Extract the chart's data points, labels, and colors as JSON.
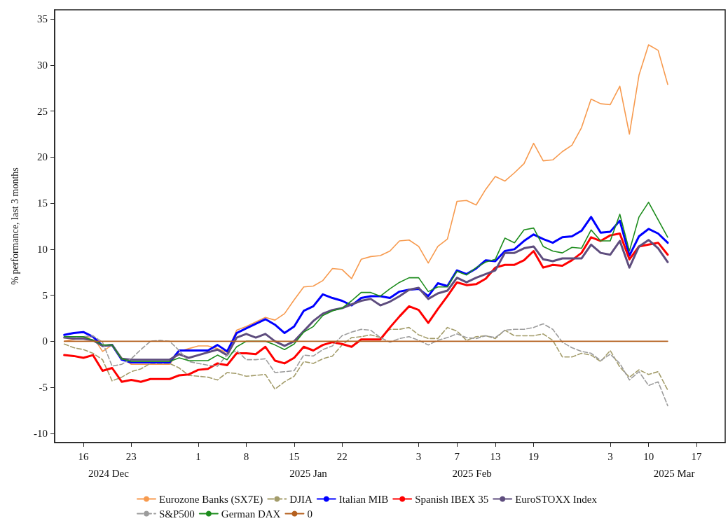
{
  "chart_data": {
    "type": "line",
    "ylabel": "% performance, last 3 months",
    "annotations": [
      "2024 Dec",
      "2025 Jan",
      "2025 Feb",
      "2025 Mar"
    ],
    "categories": [
      null,
      null,
      null,
      "16",
      null,
      null,
      null,
      null,
      "23",
      null,
      null,
      null,
      null,
      null,
      null,
      "1",
      null,
      null,
      null,
      null,
      "8",
      null,
      null,
      null,
      null,
      "15",
      null,
      null,
      null,
      null,
      "22",
      null,
      null,
      null,
      null,
      null,
      null,
      null,
      "3",
      null,
      null,
      null,
      "7",
      null,
      null,
      null,
      "13",
      null,
      null,
      null,
      "19",
      null,
      null,
      null,
      null,
      null,
      null,
      null,
      "3",
      null,
      null,
      null,
      "10",
      null,
      null,
      null,
      null,
      "17",
      null,
      null,
      null
    ],
    "series": [
      {
        "name": "Eurozone Banks (SX7E)",
        "color": "#f79a4e",
        "values": [
          null,
          0.0,
          0.2,
          0.4,
          0.5,
          -1.1,
          -0.4,
          -1.8,
          -2.5,
          -2.5,
          -2.5,
          -2.5,
          -2.5,
          -1.1,
          -0.8,
          -0.5,
          -0.5,
          -0.8,
          -1.2,
          1.2,
          1.6,
          2.1,
          2.6,
          2.3,
          3.0,
          4.5,
          5.9,
          6.0,
          6.6,
          7.9,
          7.8,
          6.8,
          8.9,
          9.2,
          9.3,
          9.8,
          10.9,
          11.0,
          10.3,
          8.5,
          10.3,
          11.1,
          15.2,
          15.3,
          14.8,
          16.5,
          17.9,
          17.4,
          18.3,
          19.3,
          21.5,
          19.6,
          19.7,
          20.6,
          21.3,
          23.2,
          26.3,
          25.8,
          25.7,
          27.7,
          22.5,
          28.9,
          32.2,
          31.6,
          27.9,
          null,
          null,
          null,
          null,
          null,
          null
        ]
      },
      {
        "name": "DJIA",
        "color": "#a39c6a",
        "line_style": "dashed",
        "values": [
          null,
          -0.3,
          -0.7,
          -0.9,
          -1.3,
          -2.0,
          -4.3,
          -3.9,
          -3.3,
          -3.0,
          -2.4,
          -2.4,
          -2.4,
          -2.9,
          -3.7,
          -3.8,
          -3.9,
          -4.2,
          -3.4,
          -3.5,
          -3.8,
          -3.7,
          -3.6,
          -5.2,
          -4.4,
          -3.8,
          -2.2,
          -2.4,
          -1.9,
          -1.6,
          -0.4,
          0.4,
          0.5,
          0.7,
          0.4,
          1.3,
          1.3,
          1.5,
          0.7,
          0.3,
          0.3,
          1.5,
          1.1,
          0.1,
          0.5,
          0.6,
          0.3,
          1.2,
          0.6,
          0.6,
          0.6,
          0.8,
          0.1,
          -1.7,
          -1.7,
          -1.3,
          -1.5,
          -2.2,
          -1.0,
          -2.8,
          -3.9,
          -3.1,
          -3.6,
          -3.3,
          -5.3,
          null,
          null,
          null,
          null,
          null,
          null
        ]
      },
      {
        "name": "Italian MIB",
        "color": "#0000ff",
        "values": [
          null,
          0.7,
          0.9,
          1.0,
          0.5,
          -0.5,
          -0.4,
          -2.0,
          -2.3,
          -2.3,
          -2.3,
          -2.3,
          -2.3,
          -1.0,
          -1.0,
          -1.0,
          -1.0,
          -0.4,
          -1.1,
          0.9,
          1.4,
          1.9,
          2.4,
          1.8,
          0.9,
          1.6,
          3.3,
          3.8,
          5.1,
          4.7,
          4.4,
          3.9,
          4.7,
          4.9,
          4.9,
          4.7,
          5.4,
          5.6,
          5.7,
          4.9,
          6.3,
          6.0,
          7.7,
          7.3,
          7.9,
          8.8,
          8.7,
          9.8,
          10.0,
          10.9,
          11.6,
          11.1,
          10.7,
          11.3,
          11.4,
          12.0,
          13.5,
          11.8,
          11.9,
          13.1,
          9.3,
          11.4,
          12.2,
          11.7,
          10.7,
          null,
          null,
          null,
          null,
          null,
          null
        ]
      },
      {
        "name": "Spanish IBEX 35",
        "color": "#ff0000",
        "values": [
          null,
          -1.5,
          -1.6,
          -1.8,
          -1.5,
          -3.2,
          -2.9,
          -4.4,
          -4.2,
          -4.4,
          -4.1,
          -4.1,
          -4.1,
          -3.7,
          -3.6,
          -3.1,
          -3.0,
          -2.4,
          -2.6,
          -1.3,
          -1.3,
          -1.4,
          -0.6,
          -2.1,
          -2.4,
          -1.8,
          -0.6,
          -1.0,
          -0.4,
          -0.1,
          -0.3,
          -0.6,
          0.2,
          0.2,
          0.2,
          1.5,
          2.7,
          3.8,
          3.4,
          2.0,
          3.5,
          4.9,
          6.4,
          6.1,
          6.2,
          6.8,
          8.0,
          8.3,
          8.3,
          8.8,
          9.8,
          8.0,
          8.3,
          8.2,
          8.8,
          9.6,
          11.3,
          10.9,
          11.5,
          11.7,
          8.9,
          10.3,
          10.5,
          10.7,
          9.4,
          null,
          null,
          null,
          null,
          null,
          null
        ]
      },
      {
        "name": "EuroSTOXX Index",
        "color": "#5e4d7e",
        "values": [
          null,
          0.4,
          0.3,
          0.3,
          0.1,
          -0.5,
          -0.4,
          -1.9,
          -2.0,
          -2.0,
          -2.0,
          -2.0,
          -2.0,
          -1.4,
          -1.8,
          -1.5,
          -1.2,
          -0.9,
          -1.5,
          0.4,
          0.8,
          0.4,
          0.8,
          0.0,
          -0.5,
          0.0,
          1.1,
          2.2,
          3.0,
          3.4,
          3.6,
          4.0,
          4.4,
          4.6,
          3.9,
          4.3,
          4.9,
          5.6,
          5.8,
          4.6,
          5.2,
          5.5,
          6.9,
          6.4,
          6.9,
          7.3,
          7.7,
          9.6,
          9.6,
          10.1,
          10.3,
          8.9,
          8.7,
          9.0,
          9.0,
          9.0,
          10.5,
          9.6,
          9.4,
          10.9,
          8.0,
          10.3,
          11.0,
          10.1,
          8.6,
          null,
          null,
          null,
          null,
          null,
          null
        ]
      },
      {
        "name": "S&P500",
        "color": "#9c9c9c",
        "line_style": "dashed",
        "values": [
          null,
          0.5,
          0.5,
          0.5,
          0.6,
          -0.1,
          -2.7,
          -2.5,
          -1.9,
          -0.9,
          0.0,
          0.1,
          0.0,
          -1.0,
          -2.2,
          -2.4,
          -2.6,
          -2.7,
          -1.5,
          -1.0,
          -2.0,
          -2.0,
          -1.9,
          -3.4,
          -3.3,
          -3.2,
          -1.5,
          -1.6,
          -0.9,
          -0.5,
          0.6,
          1.0,
          1.3,
          1.2,
          0.4,
          -0.1,
          0.3,
          0.5,
          0.1,
          -0.4,
          0.1,
          0.4,
          0.8,
          0.4,
          0.3,
          0.6,
          0.4,
          1.2,
          1.3,
          1.3,
          1.5,
          1.9,
          1.3,
          -0.1,
          -0.7,
          -1.1,
          -1.3,
          -2.1,
          -1.4,
          -2.4,
          -4.2,
          -3.3,
          -4.8,
          -4.4,
          -7.0,
          null,
          null,
          null,
          null,
          null,
          null
        ]
      },
      {
        "name": "German DAX",
        "color": "#1c8c1c",
        "values": [
          null,
          0.5,
          0.5,
          0.5,
          0.1,
          -0.4,
          -0.4,
          -1.9,
          -2.2,
          -2.2,
          -2.2,
          -2.2,
          -2.2,
          -1.8,
          -2.1,
          -2.1,
          -2.1,
          -1.5,
          -2.0,
          -0.6,
          0.0,
          0.0,
          0.0,
          -0.4,
          -0.9,
          -0.3,
          1.0,
          1.6,
          2.8,
          3.3,
          3.6,
          4.4,
          5.3,
          5.3,
          4.9,
          5.7,
          6.4,
          6.9,
          6.9,
          5.4,
          5.9,
          5.9,
          7.6,
          7.2,
          8.0,
          8.6,
          8.9,
          11.2,
          10.7,
          12.1,
          12.3,
          10.3,
          9.8,
          9.6,
          10.2,
          10.1,
          12.1,
          10.9,
          10.9,
          13.8,
          9.8,
          13.5,
          15.1,
          13.2,
          11.3,
          null,
          null,
          null,
          null,
          null,
          null
        ]
      },
      {
        "name": "0",
        "color": "#b5601e",
        "values": [
          null,
          0,
          0,
          0,
          0,
          0,
          0,
          0,
          0,
          0,
          0,
          0,
          0,
          0,
          0,
          0,
          0,
          0,
          0,
          0,
          0,
          0,
          0,
          0,
          0,
          0,
          0,
          0,
          0,
          0,
          0,
          0,
          0,
          0,
          0,
          0,
          0,
          0,
          0,
          0,
          0,
          0,
          0,
          0,
          0,
          0,
          0,
          0,
          0,
          0,
          0,
          0,
          0,
          0,
          0,
          0,
          0,
          0,
          0,
          0,
          0,
          0,
          0,
          0,
          0,
          null,
          null,
          null,
          null,
          null,
          null
        ]
      }
    ],
    "ylim": [
      -11,
      36
    ],
    "yticks": [
      -10,
      -5,
      0,
      5,
      10,
      15,
      20,
      25,
      30,
      35
    ],
    "grid": false,
    "legend": "bottom",
    "marker": "none"
  }
}
